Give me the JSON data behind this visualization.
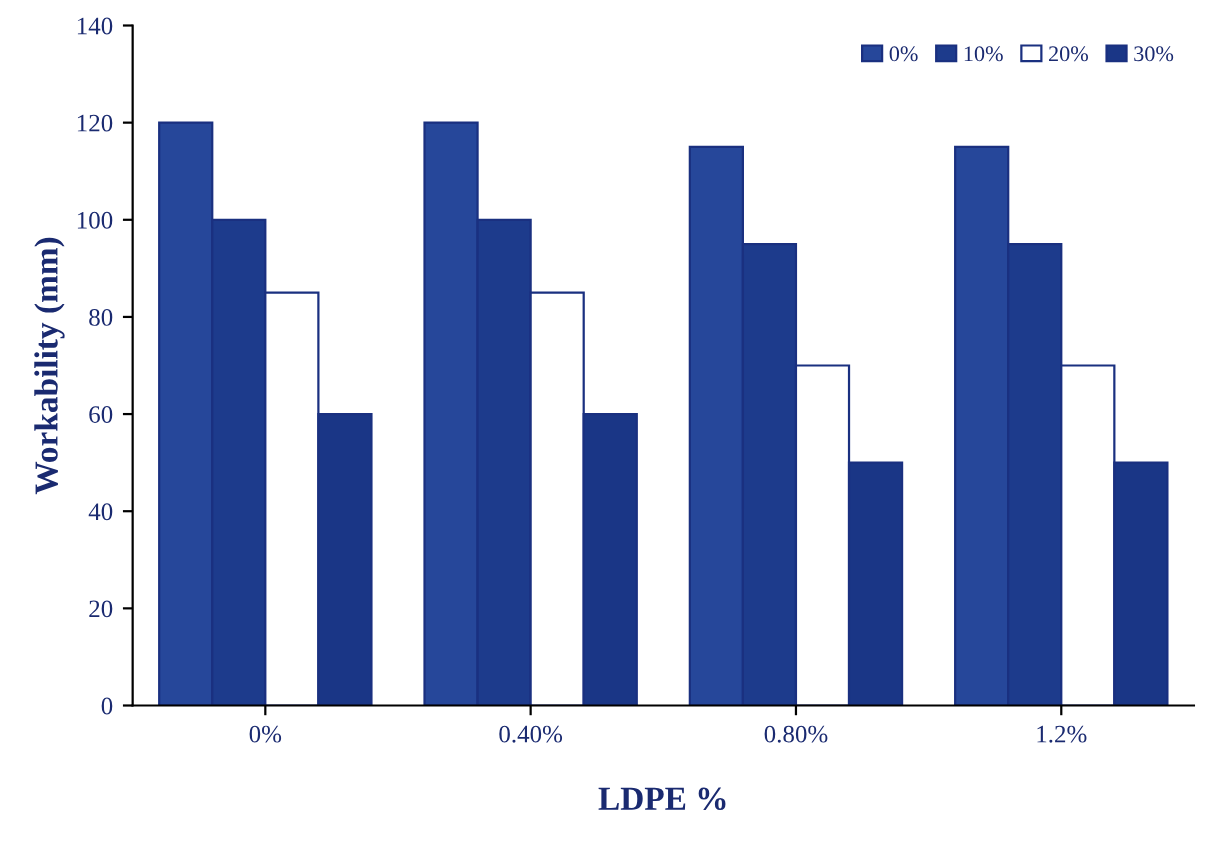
{
  "chart_data": {
    "type": "bar",
    "xlabel": "LDPE %",
    "ylabel": "Workability (mm)",
    "categories": [
      "0%",
      "0.40%",
      "0.80%",
      "1.2%"
    ],
    "series": [
      {
        "name": "0%",
        "color": "#26479a",
        "values": [
          120,
          120,
          115,
          115
        ]
      },
      {
        "name": "10%",
        "color": "#1d3b8c",
        "values": [
          100,
          100,
          95,
          95
        ]
      },
      {
        "name": "20%",
        "color": "#ffffff",
        "values": [
          85,
          85,
          70,
          70
        ]
      },
      {
        "name": "30%",
        "color": "#1a3686",
        "values": [
          60,
          60,
          50,
          50
        ]
      }
    ],
    "ylim": [
      0,
      140
    ],
    "yticks": [
      0,
      20,
      40,
      60,
      80,
      100,
      120,
      140
    ],
    "grid": false,
    "legend": "top right"
  }
}
